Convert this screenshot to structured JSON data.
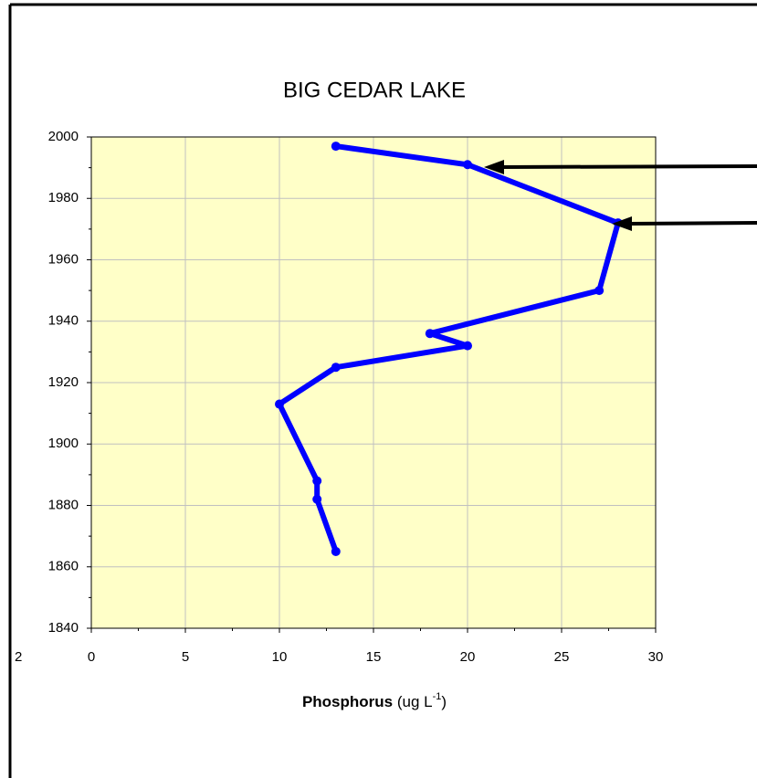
{
  "chart_data": {
    "type": "line",
    "title": "BIG CEDAR LAKE",
    "xlabel": {
      "bold": "Phosphorus",
      "text": " (ug L",
      "sup": "-1",
      "end": ")"
    },
    "y": [
      1997,
      1991,
      1972,
      1950,
      1936,
      1932,
      1925,
      1913,
      1888,
      1882,
      1865
    ],
    "series": [
      {
        "color": "#0000ff",
        "values": [
          13,
          20,
          28,
          27,
          18,
          20,
          13,
          10,
          12,
          12,
          13
        ]
      }
    ],
    "xlim": [
      0,
      30
    ],
    "xticks": [
      0,
      5,
      10,
      15,
      20,
      25,
      30
    ],
    "ylim": [
      1840,
      2000
    ],
    "yticks": [
      1840,
      1860,
      1880,
      1900,
      1920,
      1940,
      1960,
      1980,
      2000
    ],
    "grid": true,
    "plot_background": "#ffffc8",
    "annotations": [
      "2"
    ]
  }
}
